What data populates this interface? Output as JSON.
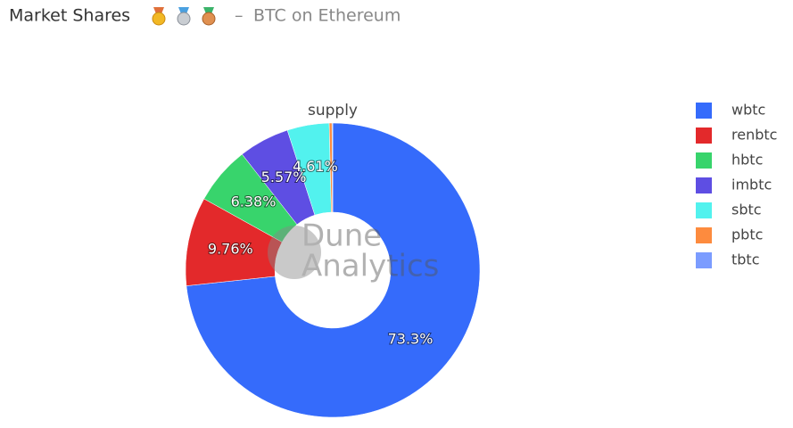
{
  "chart_data": {
    "type": "pie",
    "title": "Market Shares",
    "separator": "–",
    "subtitle": "BTC on Ethereum",
    "pie_title": "supply",
    "watermark": [
      "Dune",
      "Analytics"
    ],
    "categories": [
      "wbtc",
      "renbtc",
      "hbtc",
      "imbtc",
      "sbtc",
      "pbtc",
      "tbtc"
    ],
    "values": [
      73.3,
      9.76,
      6.38,
      5.57,
      4.61,
      0.3,
      0.08
    ],
    "value_labels": [
      "73.3%",
      "9.76%",
      "6.38%",
      "5.57%",
      "4.61%",
      null,
      null
    ],
    "colors": [
      "#356bfb",
      "#e3292b",
      "#38d46c",
      "#5e4ee3",
      "#52f2ee",
      "#fd8b3e",
      "#7b9cff"
    ],
    "hole": true,
    "direction": "clockwise",
    "legend": "right"
  }
}
